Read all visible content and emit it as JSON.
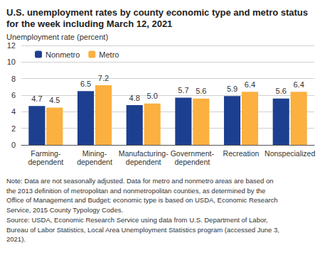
{
  "chart_data": {
    "type": "bar",
    "title": "U.S. unemployment rates by county economic type and metro status\nfor the week including March 12, 2021",
    "y_label": "Unemployment rate (percent)",
    "categories": [
      "Farming-\ndependent",
      "Mining-\ndependent",
      "Manufacturing-\ndependent",
      "Government-\ndependent",
      "Recreation",
      "Nonspecialized"
    ],
    "series": [
      {
        "name": "Nonmetro",
        "color": "#1d3f8f",
        "values": [
          4.7,
          6.5,
          4.8,
          5.7,
          5.9,
          5.6
        ]
      },
      {
        "name": "Metro",
        "color": "#fbb040",
        "values": [
          4.5,
          7.2,
          5.0,
          5.6,
          6.4,
          6.4
        ],
        "value_labels": [
          "4.5",
          "7.2",
          "5.0",
          "5.6",
          "6.4",
          "6.4"
        ]
      }
    ],
    "ylim": [
      0,
      12
    ],
    "yticks": [
      0,
      2,
      4,
      6,
      8,
      10,
      12
    ],
    "grid": true,
    "legend": "upper left",
    "data_labels": true,
    "note": "Note: Data are not seasonally adjusted. Data for metro and nonmetro areas are based on\nthe 2013 definition of metropolitan and nonmetropolitan counties, as determined by the\nOffice of Management and Budget; economic type is based on USDA, Economic Research\nService, 2015 County Typology Codes.",
    "source": "Source: USDA, Economic Research Service using data from U.S. Department of Labor,\nBureau of Labor Statistics, Local Area Unemployment Statistics program (accessed June 3,\n2021)."
  }
}
